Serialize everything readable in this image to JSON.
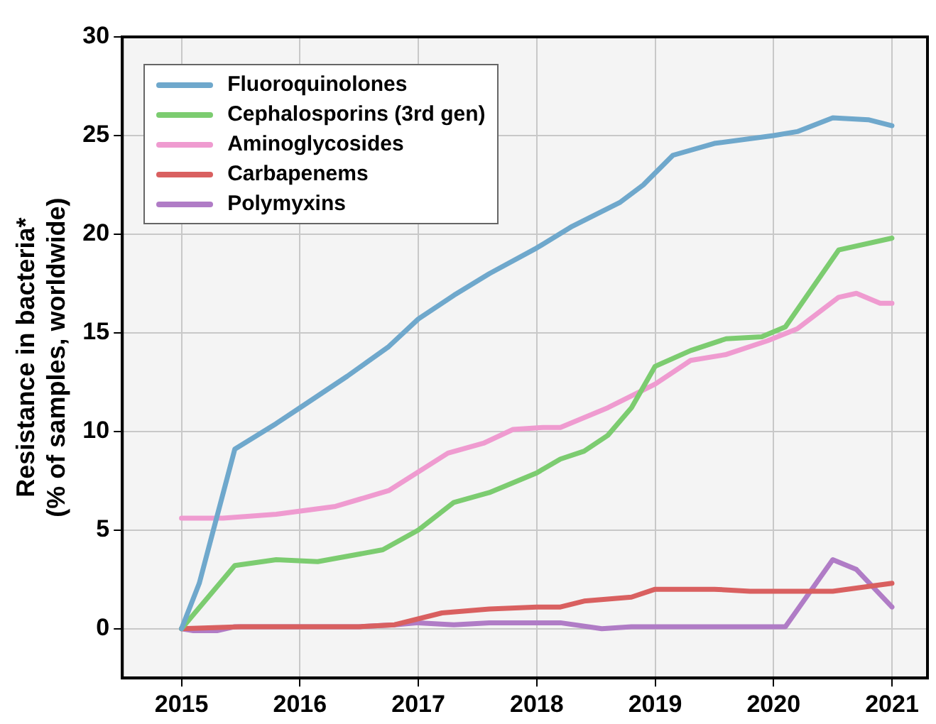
{
  "chart_data": {
    "type": "line",
    "ylabel": "Resistance in bacteria*\n(% of samples, worldwide)",
    "xlim": [
      2014.5,
      2021.3
    ],
    "xticks": [
      2015,
      2016,
      2017,
      2018,
      2019,
      2020,
      2021
    ],
    "ylim": [
      -2.5,
      30
    ],
    "yticks": [
      0,
      5,
      10,
      15,
      20,
      25,
      30
    ],
    "grid": true,
    "legend": "top left",
    "marker": "none",
    "line_style": "solid",
    "series": [
      {
        "name": "Fluoroquinolones",
        "color": "#6fa8cc",
        "x": [
          2015,
          2015.15,
          2015.45,
          2015.8,
          2016,
          2016.4,
          2016.75,
          2017,
          2017.3,
          2017.6,
          2018,
          2018.3,
          2018.7,
          2018.9,
          2019.15,
          2019.5,
          2020,
          2020.2,
          2020.5,
          2020.8,
          2021
        ],
        "values": [
          0,
          2.3,
          9.1,
          10.4,
          11.2,
          12.8,
          14.3,
          15.7,
          16.9,
          18,
          19.3,
          20.4,
          21.6,
          22.5,
          24,
          24.6,
          25,
          25.2,
          25.9,
          25.8,
          25.5
        ]
      },
      {
        "name": "Cephalosporins (3rd gen)",
        "color": "#7ccc70",
        "x": [
          2015,
          2015.45,
          2015.8,
          2016.15,
          2016.7,
          2017,
          2017.3,
          2017.6,
          2018,
          2018.2,
          2018.4,
          2018.6,
          2018.8,
          2019,
          2019.3,
          2019.6,
          2019.9,
          2020.1,
          2020.55,
          2021
        ],
        "values": [
          0,
          3.2,
          3.5,
          3.4,
          4,
          5,
          6.4,
          6.9,
          7.9,
          8.6,
          9,
          9.8,
          11.2,
          13.3,
          14.1,
          14.7,
          14.8,
          15.3,
          19.2,
          19.8
        ]
      },
      {
        "name": "Aminoglycosides",
        "color": "#ef9bd0",
        "x": [
          2015,
          2015.35,
          2015.8,
          2016.3,
          2016.75,
          2017.25,
          2017.55,
          2017.8,
          2018.05,
          2018.2,
          2018.6,
          2019,
          2019.3,
          2019.6,
          2019.95,
          2020.2,
          2020.55,
          2020.7,
          2020.9,
          2021
        ],
        "values": [
          5.6,
          5.6,
          5.8,
          6.2,
          7,
          8.9,
          9.4,
          10.1,
          10.2,
          10.2,
          11.2,
          12.4,
          13.6,
          13.9,
          14.6,
          15.2,
          16.8,
          17,
          16.5,
          16.5
        ]
      },
      {
        "name": "Carbapenems",
        "color": "#d96060",
        "x": [
          2015,
          2015.5,
          2016.5,
          2016.8,
          2017.2,
          2017.6,
          2018,
          2018.2,
          2018.4,
          2018.8,
          2019,
          2019.5,
          2019.8,
          2020.5,
          2021
        ],
        "values": [
          0,
          0.1,
          0.1,
          0.2,
          0.8,
          1,
          1.1,
          1.1,
          1.4,
          1.6,
          2,
          2,
          1.9,
          1.9,
          2.3
        ]
      },
      {
        "name": "Polymyxins",
        "color": "#b07cc6",
        "x": [
          2015,
          2015.1,
          2015.3,
          2015.45,
          2016.5,
          2016.8,
          2017,
          2017.3,
          2017.6,
          2018.2,
          2018.55,
          2018.8,
          2020.1,
          2020.5,
          2020.7,
          2021
        ],
        "values": [
          0,
          -0.1,
          -0.1,
          0.1,
          0.1,
          0.2,
          0.3,
          0.2,
          0.3,
          0.3,
          0,
          0.1,
          0.1,
          3.5,
          3,
          1.1
        ]
      }
    ]
  }
}
